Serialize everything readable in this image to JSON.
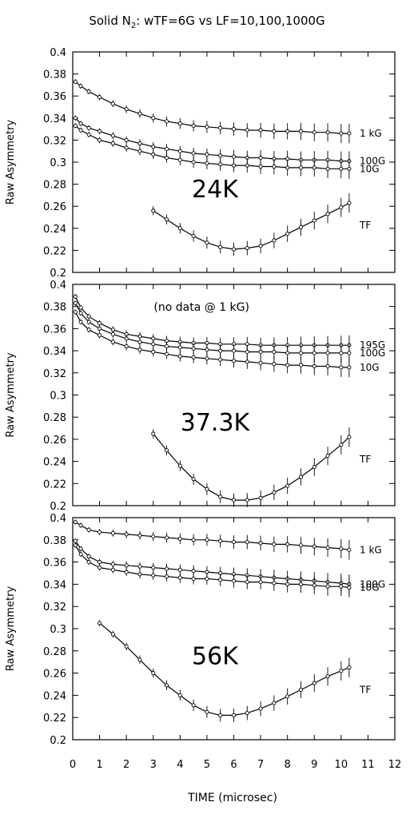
{
  "chart_data": {
    "title": "Solid N",
    "title_subscript": "2",
    "title_rest": ": wTF=6G vs LF=10,100,1000G",
    "xlabel": "TIME (microsec)",
    "xlim": [
      0,
      12
    ],
    "x_ticks": [
      0,
      1,
      2,
      3,
      4,
      5,
      6,
      7,
      8,
      9,
      10,
      11,
      12
    ],
    "panels": [
      {
        "type": "scatter",
        "temperature_label": "24K",
        "annotation": "",
        "ylabel": "Raw Asymmetry",
        "ylim": [
          0.2,
          0.4
        ],
        "y_ticks": [
          0.2,
          0.22,
          0.24,
          0.26,
          0.28,
          0.3,
          0.32,
          0.34,
          0.36,
          0.38,
          0.4
        ],
        "series": [
          {
            "name": "1 kG",
            "x": [
              0.1,
              0.3,
              0.6,
              1,
              1.5,
              2,
              2.5,
              3,
              3.5,
              4,
              4.5,
              5,
              5.5,
              6,
              6.5,
              7,
              7.5,
              8,
              8.5,
              9,
              9.5,
              10,
              10.3
            ],
            "y": [
              0.373,
              0.369,
              0.364,
              0.359,
              0.353,
              0.348,
              0.344,
              0.34,
              0.337,
              0.335,
              0.333,
              0.332,
              0.331,
              0.33,
              0.329,
              0.329,
              0.328,
              0.328,
              0.328,
              0.327,
              0.327,
              0.326,
              0.326
            ]
          },
          {
            "name": "100G",
            "x": [
              0.1,
              0.3,
              0.6,
              1,
              1.5,
              2,
              2.5,
              3,
              3.5,
              4,
              4.5,
              5,
              5.5,
              6,
              6.5,
              7,
              7.5,
              8,
              8.5,
              9,
              9.5,
              10,
              10.3
            ],
            "y": [
              0.34,
              0.335,
              0.331,
              0.328,
              0.324,
              0.32,
              0.317,
              0.314,
              0.312,
              0.31,
              0.308,
              0.307,
              0.306,
              0.305,
              0.304,
              0.304,
              0.303,
              0.303,
              0.302,
              0.302,
              0.302,
              0.301,
              0.301
            ]
          },
          {
            "name": "10G",
            "x": [
              0.1,
              0.3,
              0.6,
              1,
              1.5,
              2,
              2.5,
              3,
              3.5,
              4,
              4.5,
              5,
              5.5,
              6,
              6.5,
              7,
              7.5,
              8,
              8.5,
              9,
              9.5,
              10,
              10.3
            ],
            "y": [
              0.333,
              0.329,
              0.325,
              0.32,
              0.317,
              0.313,
              0.31,
              0.307,
              0.304,
              0.302,
              0.3,
              0.299,
              0.298,
              0.297,
              0.297,
              0.296,
              0.296,
              0.295,
              0.295,
              0.295,
              0.294,
              0.294,
              0.294
            ]
          },
          {
            "name": "TF",
            "x": [
              3,
              3.5,
              4,
              4.5,
              5,
              5.5,
              6,
              6.5,
              7,
              7.5,
              8,
              8.5,
              9,
              9.5,
              10,
              10.3
            ],
            "y": [
              0.256,
              0.248,
              0.24,
              0.233,
              0.227,
              0.223,
              0.221,
              0.222,
              0.224,
              0.229,
              0.235,
              0.241,
              0.247,
              0.253,
              0.259,
              0.263
            ]
          }
        ]
      },
      {
        "type": "scatter",
        "temperature_label": "37.3K",
        "annotation": "(no data @ 1 kG)",
        "ylabel": "Raw Asymmetry",
        "ylim": [
          0.2,
          0.4
        ],
        "y_ticks": [
          0.2,
          0.22,
          0.24,
          0.26,
          0.28,
          0.3,
          0.32,
          0.34,
          0.36,
          0.38,
          0.4
        ],
        "series": [
          {
            "name": "195G",
            "x": [
              0.1,
              0.3,
              0.6,
              1,
              1.5,
              2,
              2.5,
              3,
              3.5,
              4,
              4.5,
              5,
              5.5,
              6,
              6.5,
              7,
              7.5,
              8,
              8.5,
              9,
              9.5,
              10,
              10.3
            ],
            "y": [
              0.389,
              0.379,
              0.371,
              0.365,
              0.359,
              0.355,
              0.353,
              0.351,
              0.349,
              0.348,
              0.347,
              0.347,
              0.346,
              0.346,
              0.346,
              0.345,
              0.345,
              0.345,
              0.345,
              0.345,
              0.345,
              0.345,
              0.345
            ]
          },
          {
            "name": "100G",
            "x": [
              0.1,
              0.3,
              0.6,
              1,
              1.5,
              2,
              2.5,
              3,
              3.5,
              4,
              4.5,
              5,
              5.5,
              6,
              6.5,
              7,
              7.5,
              8,
              8.5,
              9,
              9.5,
              10,
              10.3
            ],
            "y": [
              0.383,
              0.374,
              0.366,
              0.36,
              0.355,
              0.351,
              0.348,
              0.346,
              0.344,
              0.343,
              0.342,
              0.341,
              0.34,
              0.34,
              0.339,
              0.339,
              0.339,
              0.338,
              0.338,
              0.338,
              0.338,
              0.338,
              0.338
            ]
          },
          {
            "name": "10G",
            "x": [
              0.1,
              0.3,
              0.6,
              1,
              1.5,
              2,
              2.5,
              3,
              3.5,
              4,
              4.5,
              5,
              5.5,
              6,
              6.5,
              7,
              7.5,
              8,
              8.5,
              9,
              9.5,
              10,
              10.3
            ],
            "y": [
              0.375,
              0.366,
              0.359,
              0.354,
              0.348,
              0.344,
              0.341,
              0.339,
              0.337,
              0.335,
              0.334,
              0.333,
              0.332,
              0.331,
              0.33,
              0.329,
              0.328,
              0.327,
              0.327,
              0.326,
              0.326,
              0.325,
              0.325
            ]
          },
          {
            "name": "TF",
            "x": [
              3,
              3.5,
              4,
              4.5,
              5,
              5.5,
              6,
              6.5,
              7,
              7.5,
              8,
              8.5,
              9,
              9.5,
              10,
              10.3
            ],
            "y": [
              0.265,
              0.25,
              0.236,
              0.224,
              0.215,
              0.208,
              0.205,
              0.205,
              0.207,
              0.212,
              0.218,
              0.226,
              0.235,
              0.245,
              0.255,
              0.262
            ]
          }
        ]
      },
      {
        "type": "scatter",
        "temperature_label": "56K",
        "annotation": "",
        "ylabel": "Raw Asymmetry",
        "ylim": [
          0.2,
          0.4
        ],
        "y_ticks": [
          0.2,
          0.22,
          0.24,
          0.26,
          0.28,
          0.3,
          0.32,
          0.34,
          0.36,
          0.38,
          0.4
        ],
        "series": [
          {
            "name": "1 kG",
            "x": [
              0.1,
              0.3,
              0.6,
              1,
              1.5,
              2,
              2.5,
              3,
              3.5,
              4,
              4.5,
              5,
              5.5,
              6,
              6.5,
              7,
              7.5,
              8,
              8.5,
              9,
              9.5,
              10,
              10.3
            ],
            "y": [
              0.396,
              0.393,
              0.389,
              0.387,
              0.386,
              0.385,
              0.384,
              0.383,
              0.382,
              0.381,
              0.38,
              0.38,
              0.379,
              0.378,
              0.378,
              0.377,
              0.376,
              0.376,
              0.375,
              0.374,
              0.373,
              0.372,
              0.371
            ]
          },
          {
            "name": "100G",
            "x": [
              0.1,
              0.3,
              0.6,
              1,
              1.5,
              2,
              2.5,
              3,
              3.5,
              4,
              4.5,
              5,
              5.5,
              6,
              6.5,
              7,
              7.5,
              8,
              8.5,
              9,
              9.5,
              10,
              10.3
            ],
            "y": [
              0.379,
              0.372,
              0.365,
              0.36,
              0.358,
              0.357,
              0.356,
              0.355,
              0.354,
              0.353,
              0.352,
              0.351,
              0.35,
              0.349,
              0.348,
              0.347,
              0.346,
              0.345,
              0.344,
              0.343,
              0.342,
              0.341,
              0.34
            ]
          },
          {
            "name": "10G",
            "x": [
              0.1,
              0.3,
              0.6,
              1,
              1.5,
              2,
              2.5,
              3,
              3.5,
              4,
              4.5,
              5,
              5.5,
              6,
              6.5,
              7,
              7.5,
              8,
              8.5,
              9,
              9.5,
              10,
              10.3
            ],
            "y": [
              0.375,
              0.367,
              0.36,
              0.355,
              0.353,
              0.351,
              0.349,
              0.348,
              0.347,
              0.346,
              0.345,
              0.345,
              0.344,
              0.343,
              0.342,
              0.342,
              0.341,
              0.34,
              0.34,
              0.339,
              0.338,
              0.338,
              0.337
            ]
          },
          {
            "name": "TF",
            "x": [
              1,
              1.5,
              2,
              2.5,
              3,
              3.5,
              4,
              4.5,
              5,
              5.5,
              6,
              6.5,
              7,
              7.5,
              8,
              8.5,
              9,
              9.5,
              10,
              10.3
            ],
            "y": [
              0.305,
              0.295,
              0.284,
              0.272,
              0.26,
              0.249,
              0.24,
              0.231,
              0.225,
              0.222,
              0.222,
              0.224,
              0.228,
              0.233,
              0.239,
              0.245,
              0.251,
              0.257,
              0.262,
              0.265
            ]
          }
        ]
      }
    ]
  }
}
